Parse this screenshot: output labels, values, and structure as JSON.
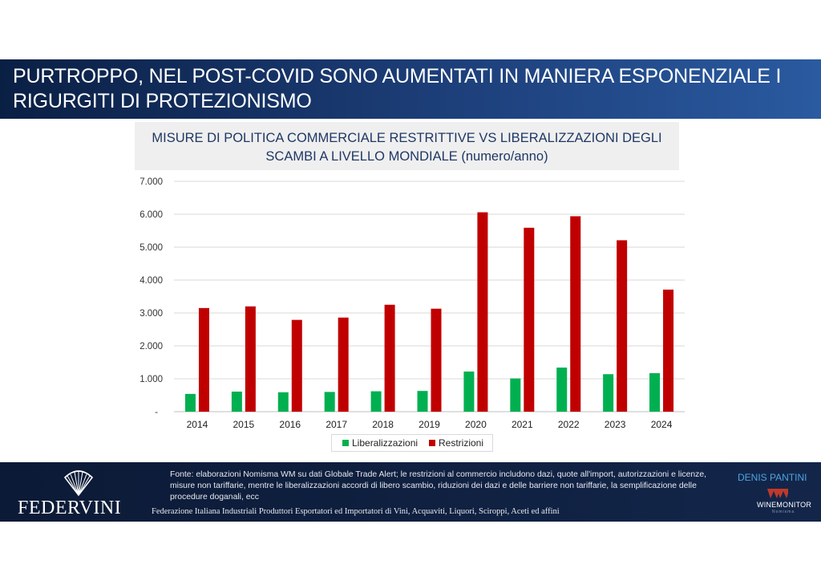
{
  "slide": {
    "title_line1": "PURTROPPO, NEL POST-COVID SONO AUMENTATI IN MANIERA ESPONENZIALE I",
    "title_line2": "RIGURGITI DI PROTEZIONISMO"
  },
  "chart_data": {
    "type": "bar",
    "title_line1": "MISURE DI POLITICA COMMERCIALE RESTRITTIVE VS LIBERALIZZAZIONI DEGLI",
    "title_line2": "SCAMBI A LIVELLO MONDIALE (numero/anno)",
    "categories": [
      "2014",
      "2015",
      "2016",
      "2017",
      "2018",
      "2019",
      "2020",
      "2021",
      "2022",
      "2023",
      "2024"
    ],
    "series": [
      {
        "name": "Liberalizzazioni",
        "color": "#00b050",
        "values": [
          540,
          610,
          590,
          600,
          620,
          630,
          1220,
          1010,
          1340,
          1140,
          1170
        ]
      },
      {
        "name": "Restrizioni",
        "color": "#c00000",
        "values": [
          3150,
          3200,
          2790,
          2860,
          3250,
          3130,
          6060,
          5590,
          5940,
          5210,
          3710
        ]
      }
    ],
    "ylim": [
      0,
      7000
    ],
    "yticks": [
      0,
      1000,
      2000,
      3000,
      4000,
      5000,
      6000,
      7000
    ],
    "ytick_labels": [
      "-",
      "1.000",
      "2.000",
      "3.000",
      "4.000",
      "5.000",
      "6.000",
      "7.000"
    ],
    "grid": true,
    "legend_position": "bottom"
  },
  "footer": {
    "source_text": "Fonte: elaborazioni Nomisma WM su dati Globale Trade Alert; le restrizioni al commercio includono dazi, quote all'import, autorizzazioni e licenze, misure non tariffarie, mentre le liberalizzazioni accordi di libero scambio, riduzioni dei dazi e delle barriere non tariffarie, la semplificazione delle procedure doganali, ecc",
    "federvini_logo": "FEDERVINI",
    "federvini_full": "Federazione Italiana Industriali Produttori Esportatori ed Importatori di Vini, Acquaviti, Liquori, Sciroppi, Aceti ed affini",
    "author": "DENIS PANTINI",
    "winemonitor_logo": "WINEMONITOR",
    "winemonitor_sub": "Nomisma",
    "shell_icon": "shell-logo-icon"
  }
}
